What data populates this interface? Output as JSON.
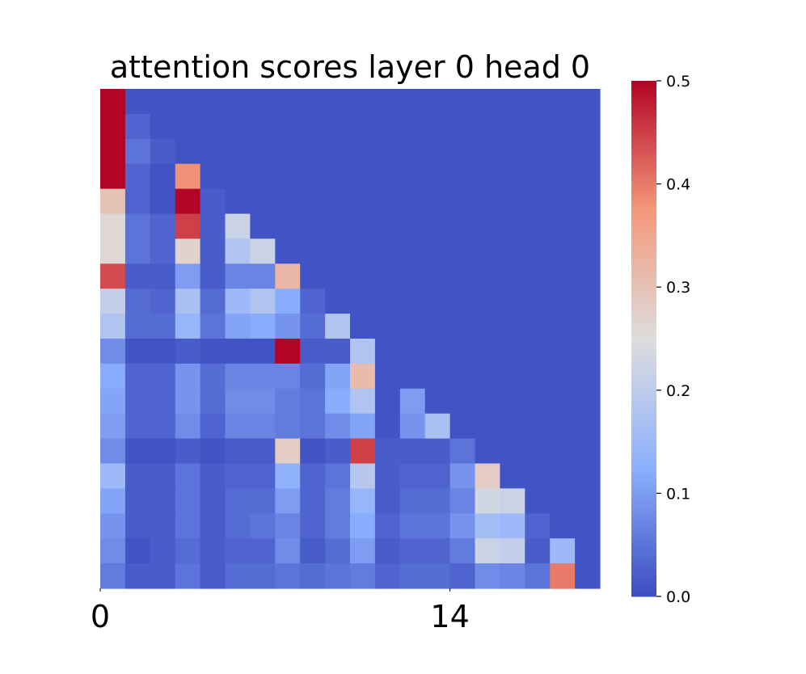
{
  "chart_data": {
    "type": "heatmap",
    "title": "attention scores layer 0 head 0",
    "xlabel": "",
    "ylabel": "",
    "x_tick_labels": [
      {
        "index": 0,
        "label": "0"
      },
      {
        "index": 14,
        "label": "14"
      }
    ],
    "colorbar": {
      "colormap": "coolwarm",
      "vmin": 0.0,
      "vmax": 0.5,
      "tick_labels": [
        "0.0",
        "0.1",
        "0.2",
        "0.3",
        "0.4",
        "0.5"
      ],
      "tick_values": [
        0.0,
        0.1,
        0.2,
        0.3,
        0.4,
        0.5
      ]
    },
    "grid": false,
    "n_rows": 20,
    "n_cols": 20,
    "values": [
      [
        0.5,
        0.01,
        0.01,
        0.01,
        0.01,
        0.01,
        0.01,
        0.01,
        0.01,
        0.01,
        0.01,
        0.01,
        0.01,
        0.01,
        0.01,
        0.01,
        0.01,
        0.01,
        0.01,
        0.01
      ],
      [
        0.5,
        0.03,
        0.01,
        0.01,
        0.01,
        0.01,
        0.01,
        0.01,
        0.01,
        0.01,
        0.01,
        0.01,
        0.01,
        0.01,
        0.01,
        0.01,
        0.01,
        0.01,
        0.01,
        0.01
      ],
      [
        0.5,
        0.05,
        0.02,
        0.01,
        0.01,
        0.01,
        0.01,
        0.01,
        0.01,
        0.01,
        0.01,
        0.01,
        0.01,
        0.01,
        0.01,
        0.01,
        0.01,
        0.01,
        0.01,
        0.01
      ],
      [
        0.5,
        0.03,
        0.01,
        0.38,
        0.01,
        0.01,
        0.01,
        0.01,
        0.01,
        0.01,
        0.01,
        0.01,
        0.01,
        0.01,
        0.01,
        0.01,
        0.01,
        0.01,
        0.01,
        0.01
      ],
      [
        0.3,
        0.03,
        0.01,
        0.5,
        0.02,
        0.01,
        0.01,
        0.01,
        0.01,
        0.01,
        0.01,
        0.01,
        0.01,
        0.01,
        0.01,
        0.01,
        0.01,
        0.01,
        0.01,
        0.01
      ],
      [
        0.26,
        0.05,
        0.03,
        0.45,
        0.02,
        0.22,
        0.01,
        0.01,
        0.01,
        0.01,
        0.01,
        0.01,
        0.01,
        0.01,
        0.01,
        0.01,
        0.01,
        0.01,
        0.01,
        0.01
      ],
      [
        0.26,
        0.05,
        0.03,
        0.27,
        0.02,
        0.18,
        0.22,
        0.01,
        0.01,
        0.01,
        0.01,
        0.01,
        0.01,
        0.01,
        0.01,
        0.01,
        0.01,
        0.01,
        0.01,
        0.01
      ],
      [
        0.44,
        0.02,
        0.02,
        0.1,
        0.02,
        0.07,
        0.07,
        0.32,
        0.01,
        0.01,
        0.01,
        0.01,
        0.01,
        0.01,
        0.01,
        0.01,
        0.01,
        0.01,
        0.01,
        0.01
      ],
      [
        0.21,
        0.04,
        0.03,
        0.17,
        0.04,
        0.15,
        0.18,
        0.12,
        0.03,
        0.01,
        0.01,
        0.01,
        0.01,
        0.01,
        0.01,
        0.01,
        0.01,
        0.01,
        0.01,
        0.01
      ],
      [
        0.18,
        0.04,
        0.04,
        0.14,
        0.05,
        0.11,
        0.12,
        0.09,
        0.04,
        0.18,
        0.01,
        0.01,
        0.01,
        0.01,
        0.01,
        0.01,
        0.01,
        0.01,
        0.01,
        0.01
      ],
      [
        0.08,
        0.01,
        0.01,
        0.02,
        0.01,
        0.01,
        0.01,
        0.5,
        0.02,
        0.02,
        0.18,
        0.01,
        0.01,
        0.01,
        0.01,
        0.01,
        0.01,
        0.01,
        0.01,
        0.01
      ],
      [
        0.12,
        0.03,
        0.03,
        0.09,
        0.04,
        0.07,
        0.07,
        0.07,
        0.04,
        0.11,
        0.31,
        0.01,
        0.01,
        0.01,
        0.01,
        0.01,
        0.01,
        0.01,
        0.01,
        0.01
      ],
      [
        0.11,
        0.03,
        0.03,
        0.09,
        0.04,
        0.08,
        0.08,
        0.06,
        0.05,
        0.12,
        0.18,
        0.01,
        0.1,
        0.01,
        0.01,
        0.01,
        0.01,
        0.01,
        0.01,
        0.01
      ],
      [
        0.1,
        0.03,
        0.03,
        0.08,
        0.03,
        0.07,
        0.07,
        0.06,
        0.05,
        0.08,
        0.11,
        0.01,
        0.09,
        0.17,
        0.01,
        0.01,
        0.01,
        0.01,
        0.01,
        0.01
      ],
      [
        0.08,
        0.01,
        0.01,
        0.02,
        0.01,
        0.02,
        0.02,
        0.28,
        0.01,
        0.02,
        0.45,
        0.02,
        0.02,
        0.02,
        0.05,
        0.01,
        0.01,
        0.01,
        0.01,
        0.01
      ],
      [
        0.15,
        0.02,
        0.02,
        0.05,
        0.02,
        0.03,
        0.03,
        0.13,
        0.03,
        0.05,
        0.19,
        0.02,
        0.03,
        0.03,
        0.09,
        0.28,
        0.01,
        0.01,
        0.01,
        0.01
      ],
      [
        0.11,
        0.02,
        0.02,
        0.05,
        0.02,
        0.04,
        0.04,
        0.1,
        0.03,
        0.06,
        0.14,
        0.02,
        0.04,
        0.04,
        0.07,
        0.23,
        0.22,
        0.01,
        0.01,
        0.01
      ],
      [
        0.09,
        0.02,
        0.02,
        0.05,
        0.02,
        0.04,
        0.05,
        0.07,
        0.03,
        0.06,
        0.12,
        0.03,
        0.05,
        0.05,
        0.09,
        0.16,
        0.15,
        0.03,
        0.01,
        0.01
      ],
      [
        0.08,
        0.01,
        0.02,
        0.04,
        0.02,
        0.03,
        0.03,
        0.08,
        0.02,
        0.04,
        0.1,
        0.02,
        0.03,
        0.03,
        0.06,
        0.22,
        0.21,
        0.02,
        0.15,
        0.01
      ],
      [
        0.06,
        0.02,
        0.02,
        0.05,
        0.02,
        0.04,
        0.04,
        0.05,
        0.04,
        0.05,
        0.06,
        0.03,
        0.04,
        0.04,
        0.03,
        0.08,
        0.07,
        0.05,
        0.4,
        0.01
      ]
    ]
  }
}
